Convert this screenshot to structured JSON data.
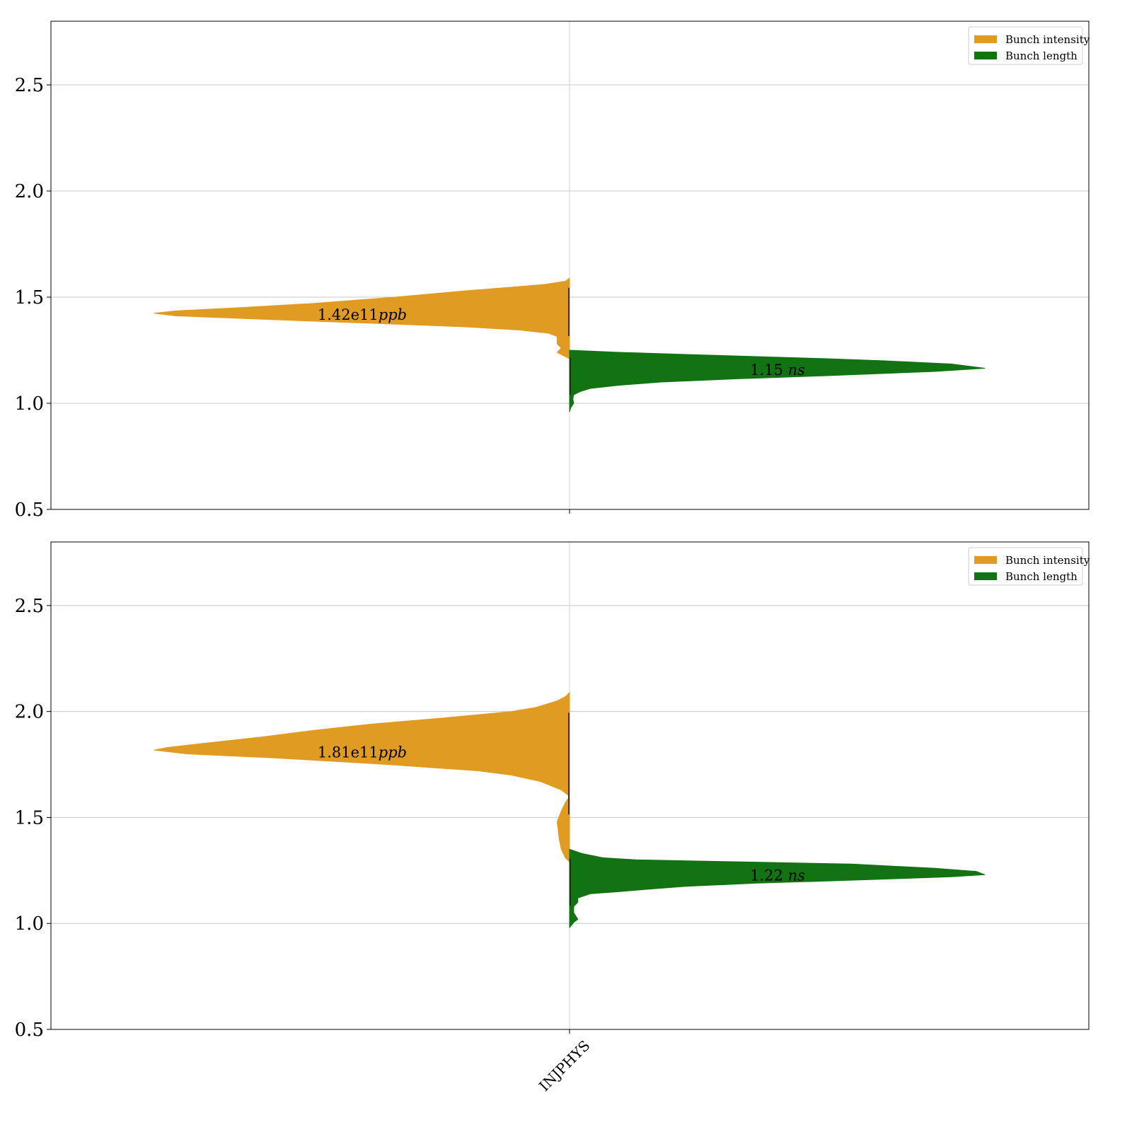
{
  "chart_data": [
    {
      "type": "violin",
      "title": "",
      "xlabel": "",
      "ylabel": "",
      "categories": [
        ""
      ],
      "ylim": [
        0.5,
        2.8
      ],
      "yticks": [
        "0.5",
        "1.0",
        "1.5",
        "2.0",
        "2.5"
      ],
      "grid": true,
      "legend_position": "top-right",
      "series": [
        {
          "name": "Bunch intensity",
          "side": "left",
          "color": "#e09b23",
          "label": "1.42e11ppb",
          "label_main": "1.42e11",
          "label_unit": "ppb",
          "label_y": 1.42,
          "min": 1.21,
          "max": 1.59,
          "profile": [
            [
              1.59,
              0.0
            ],
            [
              1.575,
              0.01
            ],
            [
              1.56,
              0.06
            ],
            [
              1.55,
              0.12
            ],
            [
              1.53,
              0.25
            ],
            [
              1.5,
              0.42
            ],
            [
              1.47,
              0.62
            ],
            [
              1.45,
              0.8
            ],
            [
              1.435,
              0.95
            ],
            [
              1.424,
              1.0
            ],
            [
              1.412,
              0.95
            ],
            [
              1.405,
              0.86
            ],
            [
              1.39,
              0.66
            ],
            [
              1.375,
              0.45
            ],
            [
              1.36,
              0.25
            ],
            [
              1.345,
              0.12
            ],
            [
              1.33,
              0.05
            ],
            [
              1.315,
              0.03
            ],
            [
              1.3,
              0.03
            ],
            [
              1.28,
              0.03
            ],
            [
              1.26,
              0.02
            ],
            [
              1.24,
              0.03
            ],
            [
              1.22,
              0.01
            ],
            [
              1.21,
              0.0
            ]
          ]
        },
        {
          "name": "Bunch length",
          "side": "right",
          "color": "#127312",
          "label": "1.15 ns",
          "label_main": "1.15",
          "label_unit": "ns",
          "label_y": 1.16,
          "min": 0.96,
          "max": 1.25,
          "profile": [
            [
              1.25,
              0.0
            ],
            [
              1.24,
              0.12
            ],
            [
              1.23,
              0.28
            ],
            [
              1.22,
              0.45
            ],
            [
              1.21,
              0.62
            ],
            [
              1.2,
              0.76
            ],
            [
              1.185,
              0.92
            ],
            [
              1.165,
              1.0
            ],
            [
              1.15,
              0.88
            ],
            [
              1.13,
              0.62
            ],
            [
              1.115,
              0.4
            ],
            [
              1.1,
              0.22
            ],
            [
              1.085,
              0.12
            ],
            [
              1.07,
              0.05
            ],
            [
              1.055,
              0.025
            ],
            [
              1.04,
              0.01
            ],
            [
              1.02,
              0.008
            ],
            [
              1.0,
              0.01
            ],
            [
              0.98,
              0.003
            ],
            [
              0.96,
              0.0
            ]
          ]
        }
      ]
    },
    {
      "type": "violin",
      "title": "",
      "xlabel": "",
      "ylabel": "",
      "categories": [
        "INJPHYS"
      ],
      "ylim": [
        0.5,
        2.8
      ],
      "yticks": [
        "0.5",
        "1.0",
        "1.5",
        "2.0",
        "2.5"
      ],
      "grid": true,
      "legend_position": "top-right",
      "series": [
        {
          "name": "Bunch intensity",
          "side": "left",
          "color": "#e09b23",
          "label": "1.81e11ppb",
          "label_main": "1.81e11",
          "label_unit": "ppb",
          "label_y": 1.81,
          "min": 1.29,
          "max": 2.09,
          "profile": [
            [
              2.09,
              0.0
            ],
            [
              2.07,
              0.01
            ],
            [
              2.05,
              0.03
            ],
            [
              2.02,
              0.08
            ],
            [
              2.0,
              0.14
            ],
            [
              1.97,
              0.3
            ],
            [
              1.94,
              0.48
            ],
            [
              1.91,
              0.62
            ],
            [
              1.88,
              0.74
            ],
            [
              1.85,
              0.88
            ],
            [
              1.83,
              0.97
            ],
            [
              1.818,
              1.0
            ],
            [
              1.8,
              0.92
            ],
            [
              1.78,
              0.7
            ],
            [
              1.75,
              0.44
            ],
            [
              1.72,
              0.22
            ],
            [
              1.7,
              0.14
            ],
            [
              1.67,
              0.07
            ],
            [
              1.63,
              0.02
            ],
            [
              1.6,
              0.0
            ],
            [
              1.57,
              0.01
            ],
            [
              1.53,
              0.02
            ],
            [
              1.48,
              0.03
            ],
            [
              1.45,
              0.028
            ],
            [
              1.4,
              0.025
            ],
            [
              1.35,
              0.02
            ],
            [
              1.31,
              0.01
            ],
            [
              1.29,
              0.0
            ]
          ]
        },
        {
          "name": "Bunch length",
          "side": "right",
          "color": "#127312",
          "label": "1.22 ns",
          "label_main": "1.22",
          "label_unit": "ns",
          "label_y": 1.23,
          "min": 0.98,
          "max": 1.35,
          "profile": [
            [
              1.35,
              0.0
            ],
            [
              1.33,
              0.03
            ],
            [
              1.31,
              0.08
            ],
            [
              1.3,
              0.16
            ],
            [
              1.29,
              0.42
            ],
            [
              1.28,
              0.68
            ],
            [
              1.26,
              0.88
            ],
            [
              1.245,
              0.98
            ],
            [
              1.23,
              1.0
            ],
            [
              1.22,
              0.92
            ],
            [
              1.2,
              0.62
            ],
            [
              1.19,
              0.45
            ],
            [
              1.175,
              0.28
            ],
            [
              1.16,
              0.18
            ],
            [
              1.15,
              0.12
            ],
            [
              1.14,
              0.05
            ],
            [
              1.12,
              0.02
            ],
            [
              1.1,
              0.02
            ],
            [
              1.08,
              0.01
            ],
            [
              1.05,
              0.01
            ],
            [
              1.02,
              0.02
            ],
            [
              1.005,
              0.01
            ],
            [
              0.98,
              0.0
            ]
          ]
        }
      ]
    }
  ]
}
